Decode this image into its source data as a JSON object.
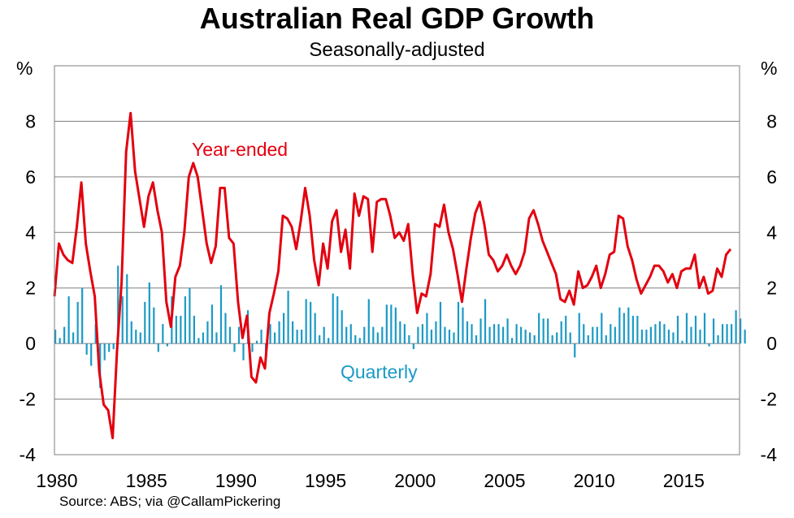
{
  "chart_data": {
    "type": "line",
    "title": "Australian Real GDP Growth",
    "subtitle": "Seasonally-adjusted",
    "ylabel_left": "%",
    "ylabel_right": "%",
    "xlabel": "",
    "ylim": [
      -4,
      10
    ],
    "y_ticks": [
      -4,
      -2,
      0,
      2,
      4,
      6,
      8
    ],
    "x_range": [
      1980,
      2018.25
    ],
    "x_ticks": [
      1980,
      1985,
      1990,
      1995,
      2000,
      2005,
      2010,
      2015
    ],
    "grid": true,
    "source": "Source: ABS; via @CallamPickering",
    "x_start": 1980.0,
    "x_step": 0.25,
    "series": [
      {
        "name": "Year-ended",
        "type": "line",
        "color": "#e3000f",
        "annotation": "Year-ended",
        "values": [
          1.7,
          3.6,
          3.2,
          3.0,
          2.9,
          4.2,
          5.8,
          3.6,
          2.6,
          1.7,
          -1.0,
          -2.2,
          -2.4,
          -3.4,
          -0.2,
          2.2,
          6.9,
          8.3,
          6.2,
          5.2,
          4.2,
          5.3,
          5.8,
          4.8,
          4.0,
          1.5,
          0.6,
          2.4,
          2.8,
          4.0,
          6.0,
          6.5,
          6.0,
          4.8,
          3.6,
          2.9,
          3.5,
          5.6,
          5.6,
          3.8,
          3.6,
          1.5,
          0.2,
          1.0,
          -1.2,
          -1.4,
          -0.5,
          -0.9,
          1.1,
          1.8,
          2.6,
          4.6,
          4.5,
          4.2,
          3.4,
          4.4,
          5.6,
          4.6,
          3.0,
          2.1,
          3.6,
          2.7,
          4.4,
          4.8,
          3.3,
          4.1,
          2.7,
          5.4,
          4.6,
          5.3,
          5.2,
          3.3,
          5.1,
          5.2,
          5.2,
          4.6,
          3.8,
          4.0,
          3.7,
          4.3,
          2.5,
          1.1,
          1.8,
          1.7,
          2.5,
          4.3,
          4.2,
          5.0,
          4.0,
          3.4,
          2.5,
          1.5,
          2.7,
          3.8,
          4.7,
          5.1,
          4.3,
          3.2,
          3.0,
          2.6,
          2.8,
          3.2,
          2.8,
          2.5,
          2.8,
          3.3,
          4.5,
          4.8,
          4.3,
          3.7,
          3.3,
          2.9,
          2.5,
          1.6,
          1.5,
          1.9,
          1.4,
          2.6,
          2.0,
          2.1,
          2.4,
          2.8,
          2.0,
          2.5,
          3.2,
          3.3,
          4.6,
          4.5,
          3.5,
          3.0,
          2.3,
          1.8,
          2.1,
          2.4,
          2.8,
          2.8,
          2.6,
          2.2,
          2.5,
          2.0,
          2.6,
          2.7,
          2.7,
          3.2,
          2.0,
          2.4,
          1.8,
          1.9,
          2.7,
          2.4,
          3.2,
          3.4
        ]
      },
      {
        "name": "Quarterly",
        "type": "bar",
        "color": "#1b9ac6",
        "annotation": "Quarterly",
        "values": [
          0.5,
          0.2,
          0.6,
          1.7,
          0.4,
          1.5,
          2.0,
          -0.4,
          -0.8,
          0.7,
          -1.6,
          -0.6,
          -0.3,
          -0.2,
          2.8,
          1.7,
          2.5,
          0.8,
          0.5,
          0.4,
          1.5,
          2.2,
          1.3,
          -0.3,
          0.7,
          -0.1,
          1.7,
          1.0,
          1.0,
          1.7,
          2.0,
          1.0,
          0.2,
          0.4,
          0.8,
          1.4,
          0.4,
          2.1,
          1.1,
          0.6,
          -0.3,
          0.6,
          -0.6,
          1.2,
          -0.3,
          0.1,
          0.5,
          -0.3,
          0.7,
          0.4,
          0.8,
          1.1,
          1.9,
          0.8,
          0.5,
          0.5,
          1.6,
          1.5,
          1.1,
          0.3,
          0.6,
          0.2,
          1.8,
          1.7,
          1.2,
          0.6,
          0.7,
          0.3,
          0.2,
          0.6,
          1.6,
          0.6,
          0.4,
          0.6,
          1.4,
          1.4,
          1.3,
          0.8,
          0.7,
          0.3,
          -0.2,
          0.6,
          0.7,
          1.1,
          0.5,
          0.8,
          1.5,
          0.6,
          0.5,
          0.4,
          1.5,
          1.3,
          0.8,
          0.7,
          0.3,
          0.9,
          1.6,
          0.6,
          0.7,
          0.7,
          0.6,
          0.9,
          0.2,
          0.7,
          0.6,
          0.5,
          0.4,
          0.3,
          1.1,
          0.9,
          0.9,
          0.3,
          0.4,
          0.8,
          1.0,
          0.4,
          -0.5,
          1.1,
          0.7,
          0.3,
          0.6,
          0.6,
          1.1,
          0.3,
          0.7,
          0.6,
          1.3,
          1.1,
          1.3,
          1.0,
          1.0,
          0.5,
          0.5,
          0.6,
          0.7,
          0.8,
          0.7,
          0.5,
          0.4,
          1.0,
          0.1,
          1.1,
          0.6,
          1.0,
          0.5,
          1.1,
          -0.1,
          0.9,
          0.3,
          0.7,
          0.7,
          0.7,
          1.2,
          0.9,
          0.5
        ]
      }
    ]
  }
}
